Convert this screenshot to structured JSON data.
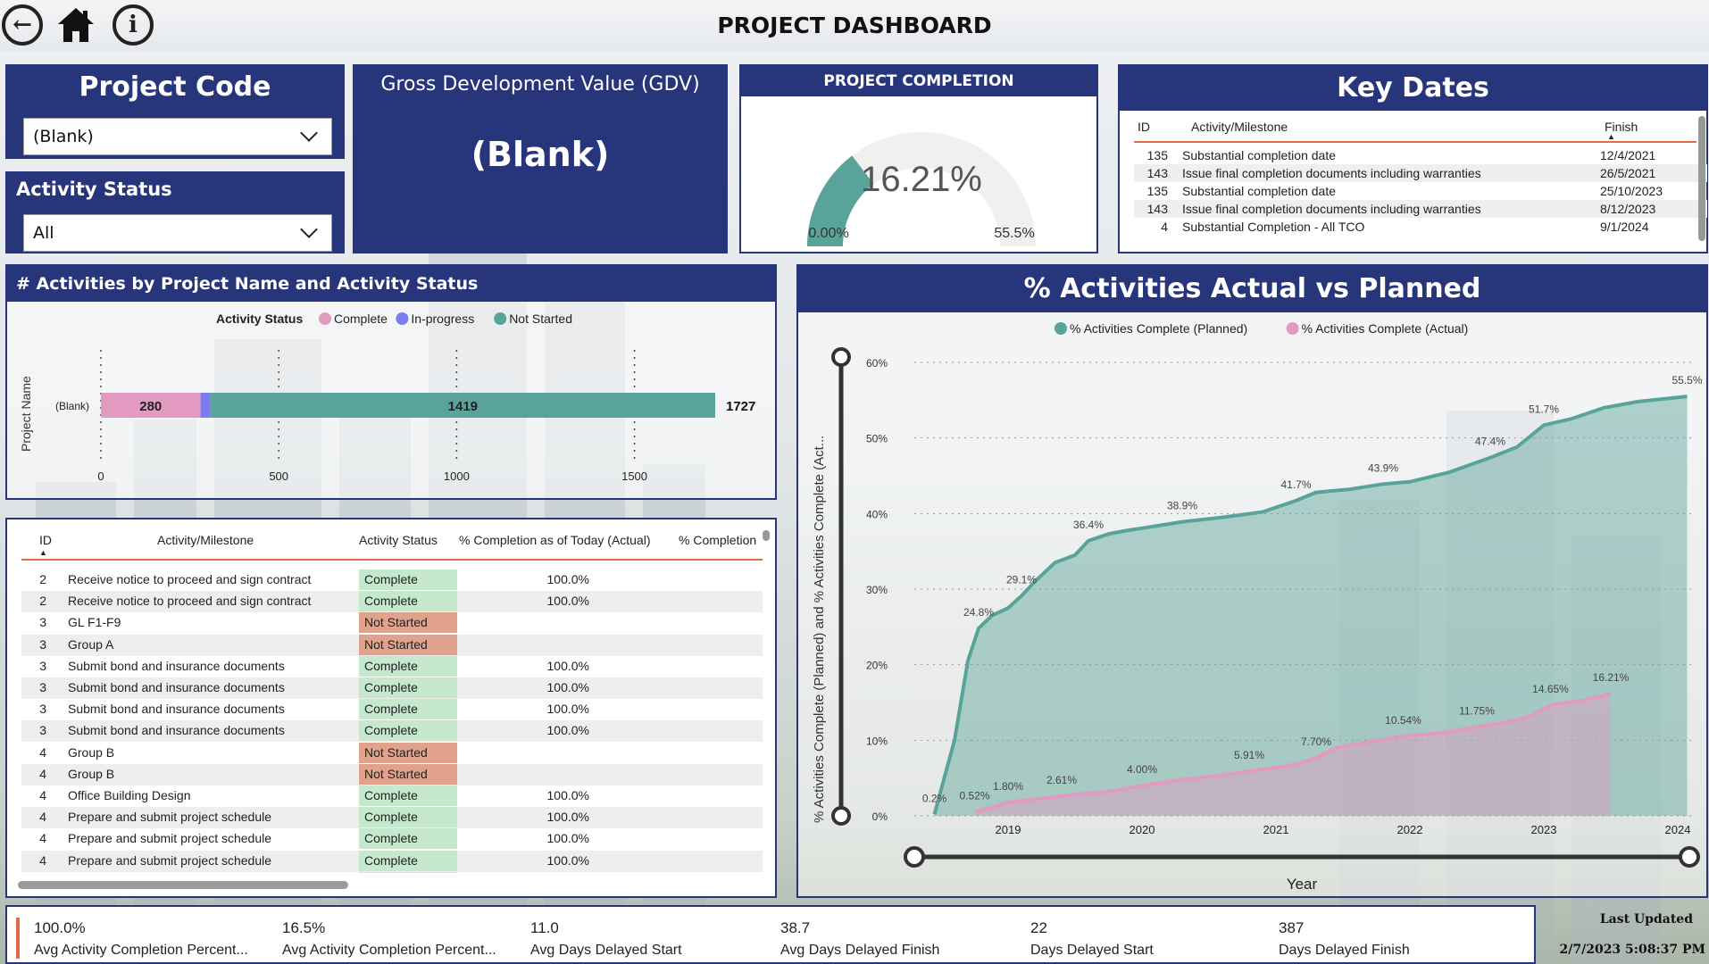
{
  "page": {
    "title": "PROJECT DASHBOARD"
  },
  "nav": {
    "back_label": "←",
    "home_label": "⌂",
    "info_label": "i"
  },
  "project_code": {
    "title": "Project Code",
    "selected": "(Blank)"
  },
  "activity_status": {
    "title": "Activity Status",
    "selected": "All"
  },
  "gdv": {
    "title": "Gross Development Value (GDV)",
    "value": "(Blank)"
  },
  "completion": {
    "title": "PROJECT COMPLETION",
    "value": "16.21%",
    "min": "0.00%",
    "max": "55.5%",
    "fraction": 0.292
  },
  "key_dates": {
    "title": "Key Dates",
    "columns": [
      "ID",
      "Activity/Milestone",
      "Finish"
    ],
    "rows": [
      {
        "id": "135",
        "name": "Substantial completion date",
        "finish": "12/4/2021"
      },
      {
        "id": "143",
        "name": "Issue final completion documents including warranties",
        "finish": "26/5/2021"
      },
      {
        "id": "135",
        "name": "Substantial completion date",
        "finish": "25/10/2023"
      },
      {
        "id": "143",
        "name": "Issue final completion documents including warranties",
        "finish": "8/12/2023"
      },
      {
        "id": "4",
        "name": "Substantial Completion - All TCO",
        "finish": "9/1/2024"
      }
    ]
  },
  "bar_panel": {
    "title": "# Activities by Project Name and Activity Status",
    "legend_title": "Activity Status",
    "ylabel": "Project Name"
  },
  "grid": {
    "columns": [
      "ID",
      "Activity/Milestone",
      "Activity Status",
      "% Completion as of Today (Actual)",
      "% Completion"
    ],
    "rows": [
      {
        "id": "2",
        "name": "Receive notice to proceed and sign contract",
        "status": "Complete",
        "pct": "100.0%"
      },
      {
        "id": "2",
        "name": "Receive notice to proceed and sign contract",
        "status": "Complete",
        "pct": "100.0%"
      },
      {
        "id": "3",
        "name": "GL F1-F9",
        "status": "Not Started",
        "pct": ""
      },
      {
        "id": "3",
        "name": "Group A",
        "status": "Not Started",
        "pct": ""
      },
      {
        "id": "3",
        "name": "Submit bond and insurance documents",
        "status": "Complete",
        "pct": "100.0%"
      },
      {
        "id": "3",
        "name": "Submit bond and insurance documents",
        "status": "Complete",
        "pct": "100.0%"
      },
      {
        "id": "3",
        "name": "Submit bond and insurance documents",
        "status": "Complete",
        "pct": "100.0%"
      },
      {
        "id": "3",
        "name": "Submit bond and insurance documents",
        "status": "Complete",
        "pct": "100.0%"
      },
      {
        "id": "4",
        "name": "Group B",
        "status": "Not Started",
        "pct": ""
      },
      {
        "id": "4",
        "name": "Group B",
        "status": "Not Started",
        "pct": ""
      },
      {
        "id": "4",
        "name": "Office Building Design",
        "status": "Complete",
        "pct": "100.0%"
      },
      {
        "id": "4",
        "name": "Prepare and submit project schedule",
        "status": "Complete",
        "pct": "100.0%"
      },
      {
        "id": "4",
        "name": "Prepare and submit project schedule",
        "status": "Complete",
        "pct": "100.0%"
      },
      {
        "id": "4",
        "name": "Prepare and submit project schedule",
        "status": "Complete",
        "pct": "100.0%"
      },
      {
        "id": "4",
        "name": "Prepare and submit project schedule",
        "status": "Complete",
        "pct": "100.0%"
      }
    ]
  },
  "line_panel": {
    "title": "% Activities Actual vs Planned",
    "xlabel": "Year",
    "ylabel": "% Activities Complete (Planned) and % Activities Complete (Act..."
  },
  "kpis": [
    {
      "value": "100.0%",
      "label": "Avg Activity Completion Percent..."
    },
    {
      "value": "16.5%",
      "label": "Avg Activity Completion Percent..."
    },
    {
      "value": "11.0",
      "label": "Avg Days Delayed Start"
    },
    {
      "value": "38.7",
      "label": "Avg Days Delayed Finish"
    },
    {
      "value": "22",
      "label": "Days Delayed Start"
    },
    {
      "value": "387",
      "label": "Days Delayed Finish"
    }
  ],
  "last_updated": {
    "label": "Last Updated",
    "value": "2/7/2023 5:08:37 PM"
  },
  "colors": {
    "navy": "#27357a",
    "teal": "#5aa39a",
    "pink": "#e39ac0",
    "purple": "#7b7cf0",
    "accent": "#e06a4a"
  },
  "chart_data": [
    {
      "type": "bar",
      "orientation": "horizontal",
      "stacked": true,
      "categories": [
        "(Blank)"
      ],
      "series": [
        {
          "name": "Complete",
          "values": [
            280
          ],
          "label": "280"
        },
        {
          "name": "In-progress",
          "values": [
            28
          ],
          "label": ""
        },
        {
          "name": "Not Started",
          "values": [
            1419
          ],
          "label": "1419"
        }
      ],
      "totals": [
        "1727"
      ],
      "xticks": [
        "0",
        "500",
        "1000",
        "1500"
      ],
      "xlim": [
        0,
        1727
      ],
      "ylabel": "Project Name",
      "legend": "top"
    },
    {
      "type": "area",
      "xlim": [
        2018.3,
        2024.1
      ],
      "ylim": [
        0,
        60
      ],
      "yticks": [
        "0%",
        "10%",
        "20%",
        "30%",
        "40%",
        "50%",
        "60%"
      ],
      "xticks": [
        "2019",
        "2020",
        "2021",
        "2022",
        "2023",
        "2024"
      ],
      "xlabel": "Year",
      "ylabel": "% Activities Complete (Planned) and % Activities Complete (Act...",
      "legend": "top",
      "series": [
        {
          "name": "% Activities Complete (Planned)",
          "x": [
            2018.45,
            2018.6,
            2018.7,
            2018.78,
            2018.88,
            2019.0,
            2019.1,
            2019.2,
            2019.35,
            2019.5,
            2019.6,
            2019.75,
            2019.9,
            2020.05,
            2020.3,
            2020.6,
            2020.9,
            2021.15,
            2021.3,
            2021.55,
            2021.8,
            2022.0,
            2022.3,
            2022.6,
            2022.8,
            2023.0,
            2023.2,
            2023.45,
            2023.7,
            2024.07
          ],
          "y": [
            0.2,
            10,
            20.5,
            24.8,
            26.5,
            27.5,
            29.1,
            31,
            33.5,
            34.5,
            36.4,
            37.3,
            37.8,
            38.2,
            38.9,
            39.5,
            40.2,
            41.7,
            42.8,
            43.2,
            43.9,
            44.2,
            45.5,
            47.4,
            48.8,
            51.7,
            52.5,
            54,
            54.8,
            55.5
          ],
          "labels": [
            "0.2%",
            "",
            "",
            "24.8%",
            "",
            "",
            "29.1%",
            "",
            "",
            "",
            "36.4%",
            "",
            "",
            "",
            "38.9%",
            "",
            "",
            "41.7%",
            "",
            "",
            "43.9%",
            "",
            "",
            "47.4%",
            "",
            "51.7%",
            "",
            "",
            "",
            "55.5%"
          ]
        },
        {
          "name": "% Activities Complete (Actual)",
          "x": [
            2018.75,
            2018.9,
            2019.0,
            2019.2,
            2019.4,
            2019.6,
            2019.8,
            2020.0,
            2020.3,
            2020.6,
            2020.8,
            2021.0,
            2021.15,
            2021.3,
            2021.45,
            2021.7,
            2021.95,
            2022.2,
            2022.5,
            2022.75,
            2022.9,
            2023.05,
            2023.3,
            2023.5
          ],
          "y": [
            0.52,
            1.2,
            1.8,
            2.2,
            2.61,
            3.0,
            3.3,
            4.0,
            4.8,
            5.4,
            5.91,
            6.4,
            6.8,
            7.7,
            9.0,
            9.8,
            10.54,
            10.9,
            11.75,
            12.5,
            13.2,
            14.65,
            15.3,
            16.21
          ],
          "labels": [
            "0.52%",
            "",
            "1.80%",
            "",
            "2.61%",
            "",
            "",
            "4.00%",
            "",
            "",
            "5.91%",
            "",
            "",
            "7.70%",
            "",
            "",
            "10.54%",
            "",
            "11.75%",
            "",
            "",
            "14.65%",
            "",
            "16.21%"
          ]
        }
      ]
    }
  ]
}
